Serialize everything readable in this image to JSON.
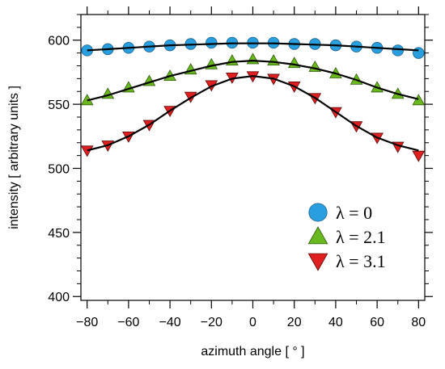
{
  "chart_data": {
    "type": "scatter",
    "xlabel": "azimuth angle [ ° ]",
    "ylabel": "intensity [ arbitrary units ]",
    "xlim": [
      -83,
      83
    ],
    "ylim": [
      397,
      620
    ],
    "x_ticks": [
      -80,
      -60,
      -40,
      -20,
      0,
      20,
      40,
      60,
      80
    ],
    "x_tick_labels": [
      "−80",
      "−60",
      "−40",
      "−20",
      "0",
      "20",
      "40",
      "60",
      "80"
    ],
    "y_ticks": [
      400,
      450,
      500,
      550,
      600
    ],
    "y_tick_labels": [
      "400",
      "450",
      "500",
      "550",
      "600"
    ],
    "grid": false,
    "legend_position": "bottom-right",
    "series": [
      {
        "name": "λ = 0",
        "marker": "circle",
        "color": "#2a9fe0",
        "stroke": "#1a5f8a",
        "x": [
          -80,
          -70,
          -60,
          -50,
          -40,
          -30,
          -20,
          -10,
          0,
          10,
          20,
          30,
          40,
          50,
          60,
          70,
          80
        ],
        "y": [
          592,
          593,
          594,
          595,
          596,
          597,
          598,
          598,
          598,
          598,
          597,
          597,
          596,
          595,
          594,
          592,
          590
        ],
        "fit_y": [
          592,
          593,
          594,
          595,
          596,
          596.5,
          597,
          597.5,
          597.5,
          597.5,
          597,
          596.5,
          596,
          595,
          594,
          593,
          592
        ]
      },
      {
        "name": "λ = 2.1",
        "marker": "triangle-up",
        "color": "#6ab820",
        "stroke": "#2f5a0a",
        "x": [
          -80,
          -70,
          -60,
          -50,
          -40,
          -30,
          -20,
          -10,
          0,
          10,
          20,
          30,
          40,
          50,
          60,
          70,
          80
        ],
        "y": [
          553,
          558,
          563,
          568,
          572,
          577,
          581,
          584,
          585,
          584,
          582,
          579,
          574,
          569,
          563,
          558,
          553
        ],
        "fit_y": [
          553,
          557,
          562,
          567,
          572,
          576,
          580,
          583,
          584,
          583,
          581,
          578,
          574,
          569,
          563,
          558,
          554
        ]
      },
      {
        "name": "λ = 3.1",
        "marker": "triangle-down",
        "color": "#e02020",
        "stroke": "#5a0a0a",
        "x": [
          -80,
          -70,
          -60,
          -50,
          -40,
          -30,
          -20,
          -10,
          0,
          10,
          20,
          30,
          40,
          50,
          60,
          70,
          80
        ],
        "y": [
          514,
          518,
          525,
          534,
          545,
          556,
          565,
          571,
          572,
          570,
          564,
          555,
          544,
          533,
          524,
          517,
          510
        ],
        "fit_y": [
          514,
          518,
          525,
          534,
          545,
          555,
          564,
          570,
          572,
          570,
          564,
          555,
          544,
          533,
          524,
          518,
          514
        ]
      }
    ],
    "fit_line_color": "#000000"
  }
}
